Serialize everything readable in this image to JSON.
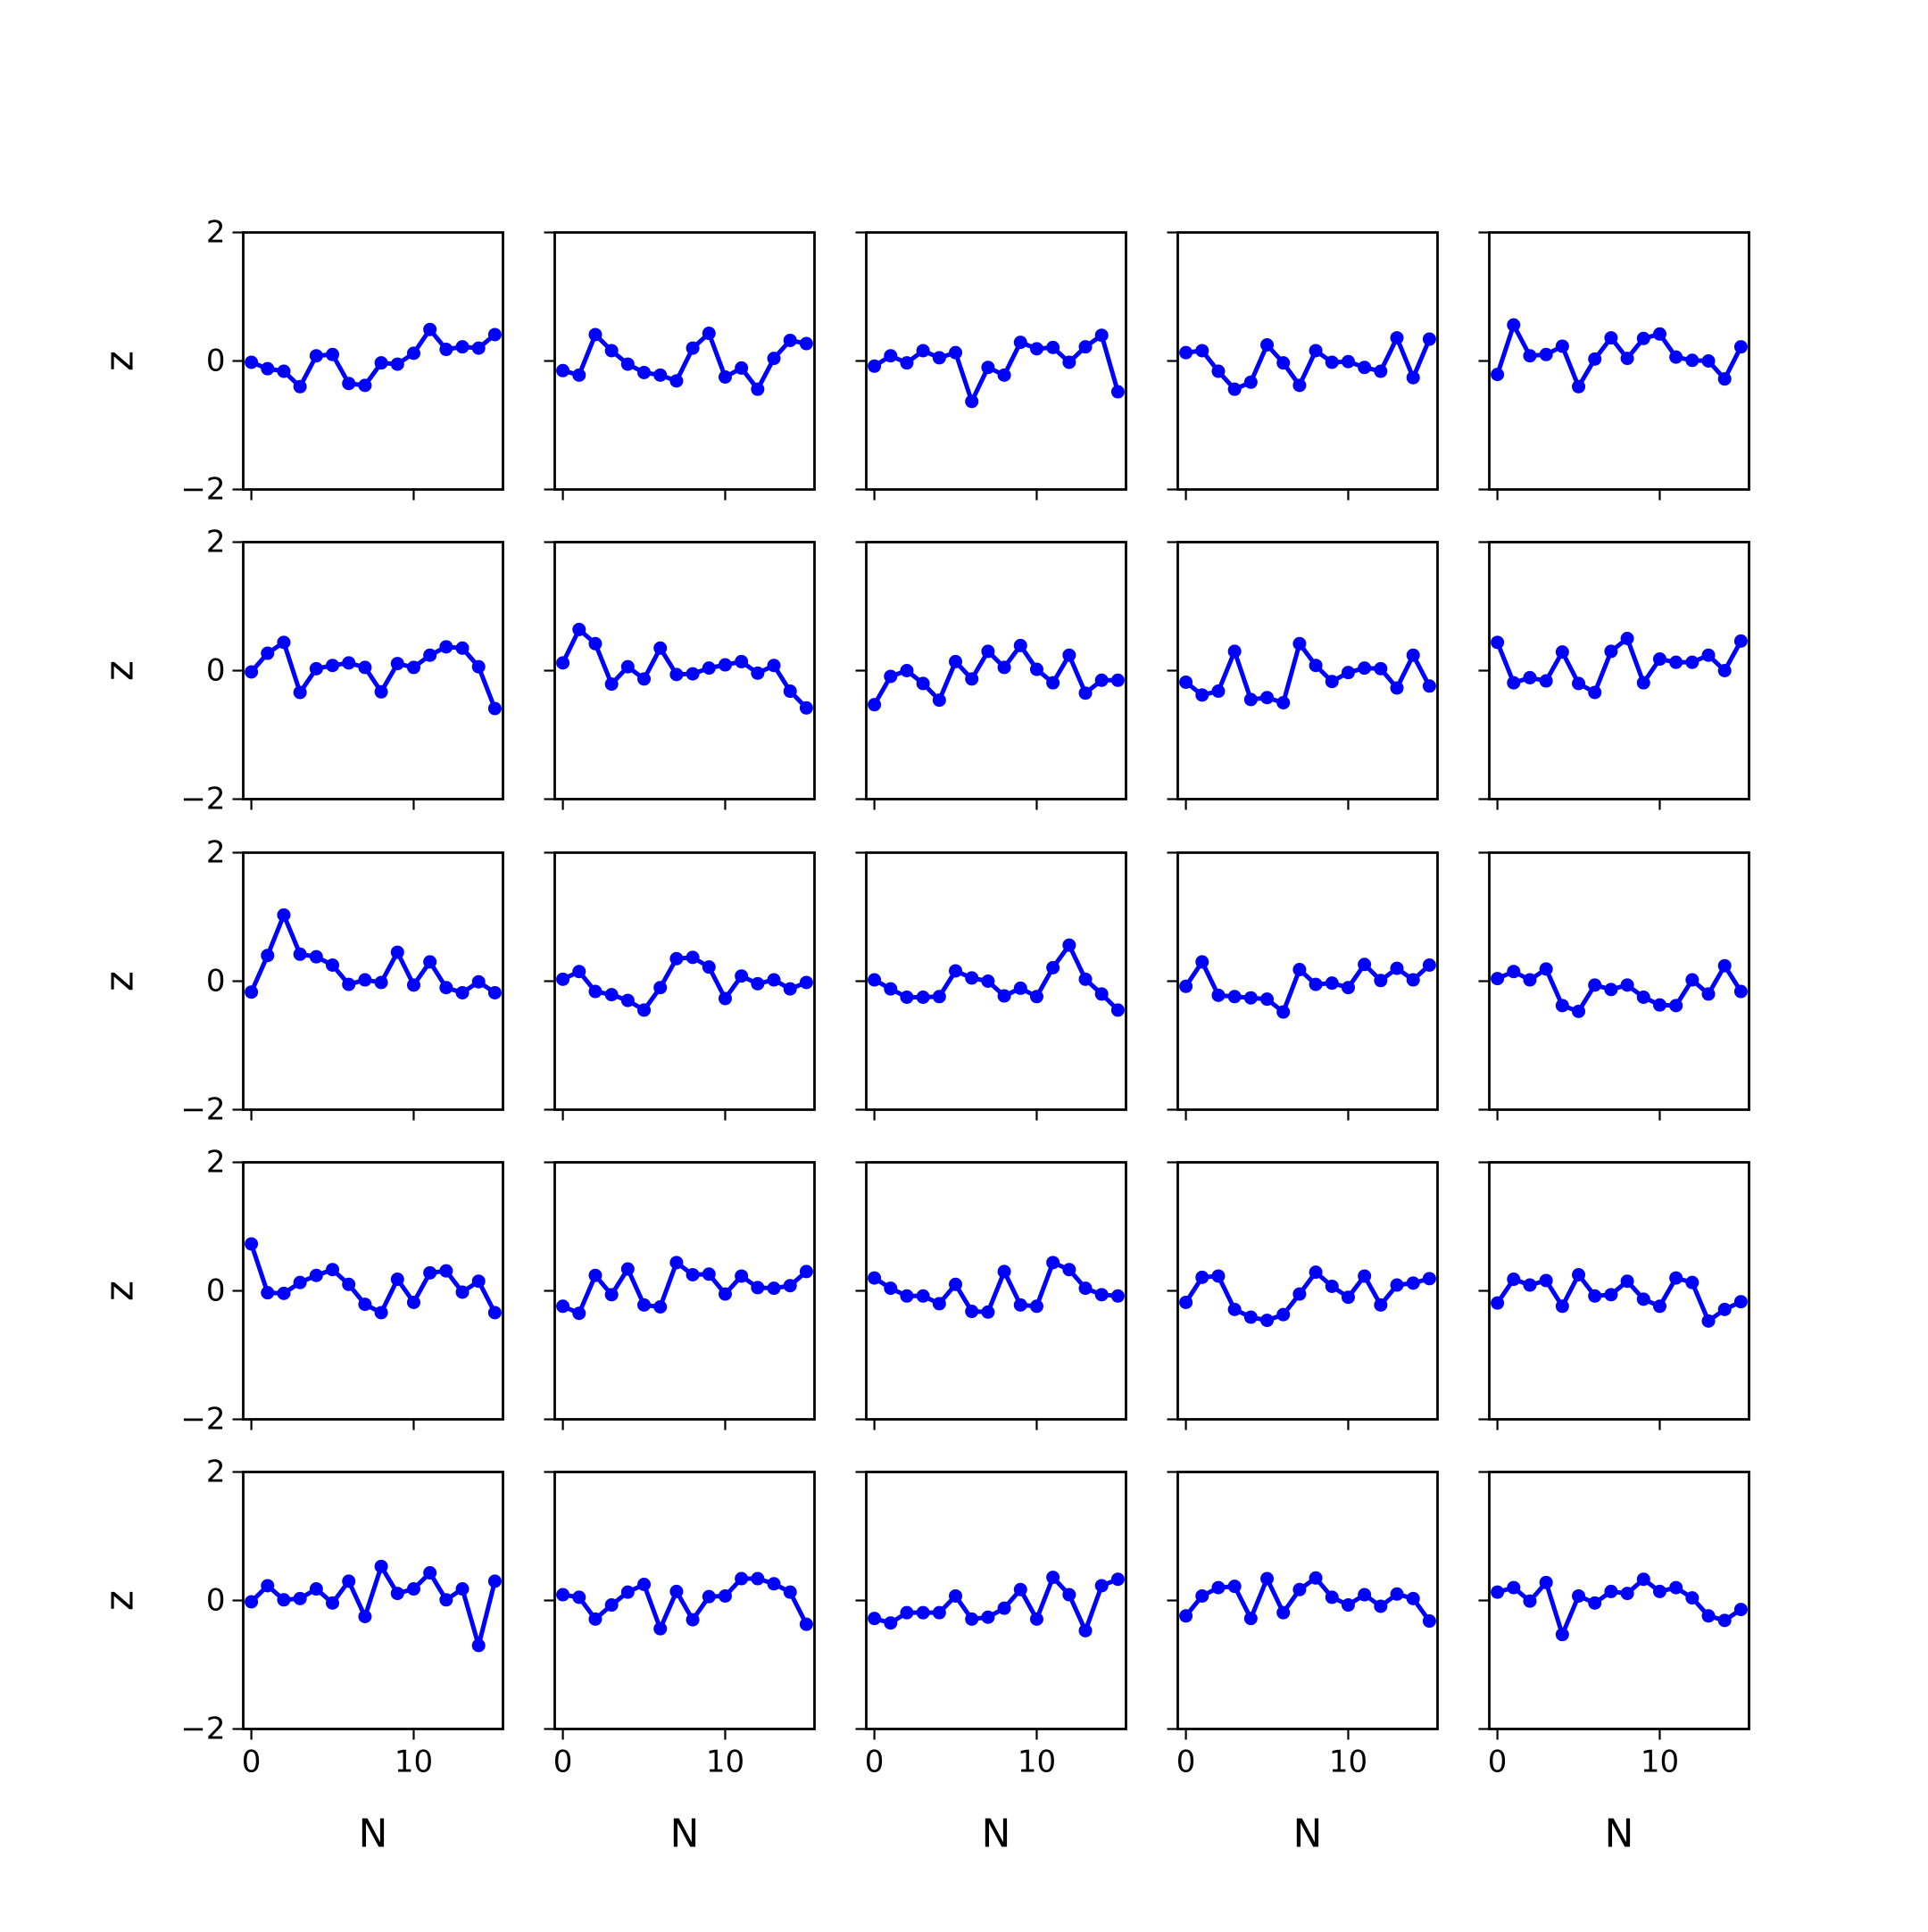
{
  "chart_data": {
    "type": "line",
    "layout": "5x5 grid of small multiples",
    "x": [
      0,
      1,
      2,
      3,
      4,
      5,
      6,
      7,
      8,
      9,
      10,
      11,
      12,
      13,
      14,
      15
    ],
    "xlim": [
      -0.5,
      15.5
    ],
    "ylim": [
      -2,
      2
    ],
    "x_ticks": [
      0,
      10
    ],
    "y_ticks": [
      -2,
      0,
      2
    ],
    "x_tick_labels": [
      "0",
      "10"
    ],
    "y_tick_labels": [
      "−2",
      "0",
      "2"
    ],
    "xlabel": "N",
    "ylabel": "z",
    "grid": false,
    "legend": "none",
    "color": "#0000ff",
    "panels": [
      {
        "row": 0,
        "col": 0,
        "values": [
          -0.02,
          -0.12,
          -0.16,
          -0.4,
          0.08,
          0.1,
          -0.35,
          -0.38,
          -0.03,
          -0.05,
          0.12,
          0.49,
          0.18,
          0.22,
          0.2,
          0.41
        ]
      },
      {
        "row": 0,
        "col": 1,
        "values": [
          -0.15,
          -0.22,
          0.41,
          0.16,
          -0.05,
          -0.18,
          -0.22,
          -0.31,
          0.2,
          0.43,
          -0.25,
          -0.11,
          -0.44,
          0.04,
          0.32,
          0.27
        ]
      },
      {
        "row": 0,
        "col": 2,
        "values": [
          -0.08,
          0.08,
          -0.03,
          0.16,
          0.05,
          0.13,
          -0.63,
          -0.1,
          -0.22,
          0.29,
          0.19,
          0.21,
          -0.02,
          0.22,
          0.4,
          -0.48
        ]
      },
      {
        "row": 0,
        "col": 3,
        "values": [
          0.13,
          0.16,
          -0.16,
          -0.44,
          -0.33,
          0.25,
          -0.03,
          -0.38,
          0.16,
          -0.02,
          -0.01,
          -0.1,
          -0.16,
          0.36,
          -0.26,
          0.34
        ]
      },
      {
        "row": 0,
        "col": 4,
        "values": [
          -0.21,
          0.56,
          0.08,
          0.1,
          0.23,
          -0.4,
          0.03,
          0.36,
          0.04,
          0.35,
          0.42,
          0.06,
          0.01,
          0.0,
          -0.28,
          0.22
        ]
      },
      {
        "row": 1,
        "col": 0,
        "values": [
          -0.02,
          0.27,
          0.44,
          -0.34,
          0.03,
          0.08,
          0.12,
          0.05,
          -0.33,
          0.11,
          0.05,
          0.24,
          0.37,
          0.35,
          0.06,
          -0.59
        ]
      },
      {
        "row": 1,
        "col": 1,
        "values": [
          0.12,
          0.64,
          0.42,
          -0.21,
          0.06,
          -0.13,
          0.35,
          -0.06,
          -0.05,
          0.04,
          0.09,
          0.14,
          -0.04,
          0.08,
          -0.32,
          -0.58
        ]
      },
      {
        "row": 1,
        "col": 2,
        "values": [
          -0.53,
          -0.09,
          0.0,
          -0.2,
          -0.46,
          0.14,
          -0.13,
          0.3,
          0.05,
          0.39,
          0.02,
          -0.19,
          0.24,
          -0.35,
          -0.15,
          -0.15
        ]
      },
      {
        "row": 1,
        "col": 3,
        "values": [
          -0.18,
          -0.38,
          -0.32,
          0.3,
          -0.45,
          -0.42,
          -0.5,
          0.42,
          0.08,
          -0.17,
          -0.03,
          0.04,
          0.03,
          -0.27,
          0.24,
          -0.24
        ]
      },
      {
        "row": 1,
        "col": 4,
        "values": [
          0.44,
          -0.19,
          -0.11,
          -0.16,
          0.29,
          -0.2,
          -0.34,
          0.3,
          0.5,
          -0.19,
          0.18,
          0.13,
          0.13,
          0.24,
          0.0,
          0.46
        ]
      },
      {
        "row": 2,
        "col": 0,
        "values": [
          -0.17,
          0.4,
          1.03,
          0.42,
          0.38,
          0.25,
          -0.05,
          0.02,
          -0.02,
          0.45,
          -0.06,
          0.3,
          -0.1,
          -0.18,
          -0.01,
          -0.18
        ]
      },
      {
        "row": 2,
        "col": 1,
        "values": [
          0.03,
          0.15,
          -0.16,
          -0.21,
          -0.3,
          -0.45,
          -0.1,
          0.35,
          0.37,
          0.22,
          -0.27,
          0.08,
          -0.04,
          0.02,
          -0.12,
          -0.02
        ]
      },
      {
        "row": 2,
        "col": 2,
        "values": [
          0.02,
          -0.12,
          -0.25,
          -0.25,
          -0.24,
          0.16,
          0.05,
          0.0,
          -0.23,
          -0.11,
          -0.24,
          0.21,
          0.56,
          0.03,
          -0.2,
          -0.45
        ]
      },
      {
        "row": 2,
        "col": 3,
        "values": [
          -0.08,
          0.3,
          -0.22,
          -0.24,
          -0.26,
          -0.28,
          -0.48,
          0.18,
          -0.05,
          -0.03,
          -0.1,
          0.26,
          0.01,
          0.2,
          0.02,
          0.25
        ]
      },
      {
        "row": 2,
        "col": 4,
        "values": [
          0.04,
          0.15,
          0.02,
          0.19,
          -0.38,
          -0.47,
          -0.06,
          -0.13,
          -0.06,
          -0.25,
          -0.37,
          -0.38,
          0.02,
          -0.2,
          0.24,
          -0.16
        ]
      },
      {
        "row": 3,
        "col": 0,
        "values": [
          0.73,
          -0.03,
          -0.04,
          0.13,
          0.24,
          0.33,
          0.1,
          -0.21,
          -0.34,
          0.18,
          -0.18,
          0.28,
          0.31,
          -0.02,
          0.15,
          -0.34
        ]
      },
      {
        "row": 3,
        "col": 1,
        "values": [
          -0.24,
          -0.35,
          0.24,
          -0.06,
          0.34,
          -0.22,
          -0.25,
          0.44,
          0.25,
          0.26,
          -0.05,
          0.23,
          0.05,
          0.04,
          0.08,
          0.3
        ]
      },
      {
        "row": 3,
        "col": 2,
        "values": [
          0.2,
          0.04,
          -0.08,
          -0.08,
          -0.2,
          0.1,
          -0.32,
          -0.33,
          0.3,
          -0.22,
          -0.24,
          0.44,
          0.33,
          0.04,
          -0.06,
          -0.08
        ]
      },
      {
        "row": 3,
        "col": 3,
        "values": [
          -0.18,
          0.21,
          0.23,
          -0.29,
          -0.41,
          -0.46,
          -0.37,
          -0.05,
          0.29,
          0.07,
          -0.1,
          0.23,
          -0.22,
          0.09,
          0.12,
          0.19
        ]
      },
      {
        "row": 3,
        "col": 4,
        "values": [
          -0.19,
          0.18,
          0.09,
          0.16,
          -0.24,
          0.25,
          -0.08,
          -0.06,
          0.15,
          -0.13,
          -0.24,
          0.2,
          0.13,
          -0.47,
          -0.29,
          -0.17
        ]
      },
      {
        "row": 4,
        "col": 0,
        "values": [
          -0.02,
          0.23,
          0.01,
          0.03,
          0.18,
          -0.04,
          0.3,
          -0.25,
          0.53,
          0.11,
          0.18,
          0.43,
          0.01,
          0.18,
          -0.7,
          0.3
        ]
      },
      {
        "row": 4,
        "col": 1,
        "values": [
          0.09,
          0.05,
          -0.29,
          -0.07,
          0.13,
          0.25,
          -0.44,
          0.14,
          -0.3,
          0.06,
          0.07,
          0.34,
          0.34,
          0.26,
          0.13,
          -0.37
        ]
      },
      {
        "row": 4,
        "col": 2,
        "values": [
          -0.28,
          -0.35,
          -0.19,
          -0.19,
          -0.19,
          0.07,
          -0.29,
          -0.26,
          -0.12,
          0.17,
          -0.29,
          0.36,
          0.09,
          -0.47,
          0.23,
          0.33
        ]
      },
      {
        "row": 4,
        "col": 3,
        "values": [
          -0.24,
          0.07,
          0.2,
          0.22,
          -0.28,
          0.34,
          -0.19,
          0.17,
          0.35,
          0.05,
          -0.07,
          0.09,
          -0.09,
          0.1,
          0.03,
          -0.32
        ]
      },
      {
        "row": 4,
        "col": 4,
        "values": [
          0.13,
          0.2,
          -0.01,
          0.28,
          -0.53,
          0.07,
          -0.04,
          0.14,
          0.11,
          0.33,
          0.14,
          0.2,
          0.04,
          -0.24,
          -0.31,
          -0.14
        ]
      }
    ]
  }
}
